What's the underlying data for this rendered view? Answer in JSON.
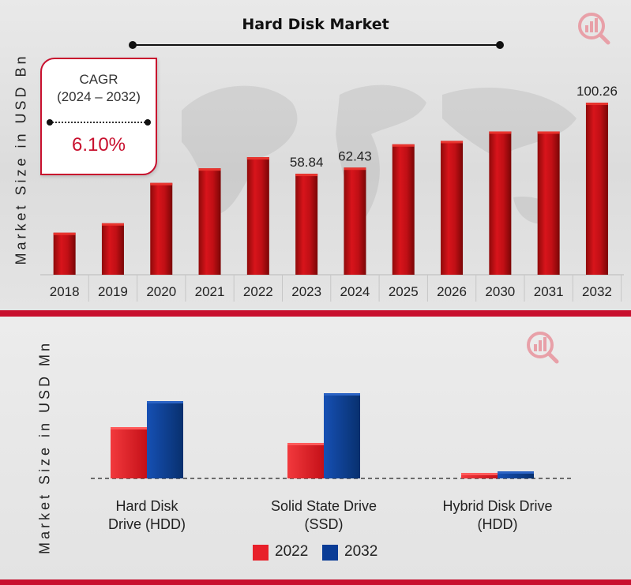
{
  "colors": {
    "accent": "#c8102e",
    "bar_top": "#c8102e",
    "series_2022": "#e8202a",
    "series_2032": "#0a3c96"
  },
  "top": {
    "title": "Hard Disk Market",
    "cagr": {
      "label": "CAGR",
      "range": "(2024 – 2032)",
      "value": "6.10%"
    }
  },
  "bottom": {},
  "chart_data": [
    {
      "type": "bar",
      "title": "Hard Disk Market",
      "ylabel": "Market Size in USD Bn",
      "categories": [
        "2018",
        "2019",
        "2020",
        "2021",
        "2022",
        "2023",
        "2024",
        "2025",
        "2026",
        "2030",
        "2031",
        "2032"
      ],
      "values": [
        24.5,
        30.0,
        53.5,
        62.0,
        68.5,
        58.84,
        62.43,
        76.0,
        78.0,
        83.5,
        83.5,
        100.26
      ],
      "data_labels": {
        "5": "58.84",
        "6": "62.43",
        "11": "100.26"
      },
      "ylim": [
        0,
        115
      ],
      "grid": false,
      "legend": "none"
    },
    {
      "type": "bar",
      "ylabel": "Market Size in USD Mn",
      "categories": [
        "Hard Disk Drive (HDD)",
        "Solid State Drive (SSD)",
        "Hybrid Disk Drive (HDD)"
      ],
      "category_lines": [
        [
          "Hard Disk",
          "Drive (HDD)"
        ],
        [
          "Solid State Drive",
          "(SSD)"
        ],
        [
          "Hybrid Disk Drive",
          "(HDD)"
        ]
      ],
      "series": [
        {
          "name": "2022",
          "values": [
            65,
            45,
            7
          ]
        },
        {
          "name": "2032",
          "values": [
            98,
            108,
            9
          ]
        }
      ],
      "ylim": [
        0,
        118
      ],
      "grid": false,
      "legend": "bottom-center"
    }
  ]
}
